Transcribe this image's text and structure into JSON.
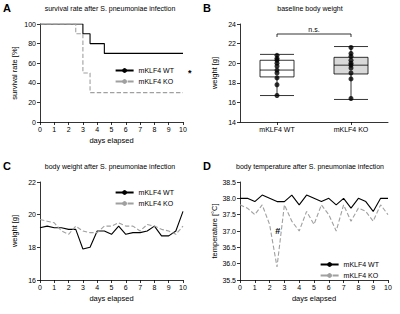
{
  "chart_data": [
    {
      "panel": "A",
      "type": "step",
      "title": "survival rate after S. pneumoniae infection",
      "x_label": "days elapsed",
      "y_label": "survival rate [%]",
      "xlim": [
        0,
        10
      ],
      "xticks": [
        0,
        1,
        2,
        3,
        4,
        5,
        6,
        7,
        8,
        9,
        10
      ],
      "ylim": [
        0,
        100
      ],
      "yticks": [
        0,
        20,
        40,
        60,
        80,
        100
      ],
      "grid": false,
      "legend": "right",
      "annotations": [
        "*"
      ],
      "series": [
        {
          "name": "mKLF4 WT",
          "color": "#000000",
          "line_style": "solid",
          "x": [
            0,
            3,
            3.5,
            4.5,
            10
          ],
          "values": [
            100,
            90,
            80,
            70,
            70
          ]
        },
        {
          "name": "mKLF4 KO",
          "color": "#a0a0a0",
          "line_style": "dashed",
          "x": [
            0,
            2.5,
            3,
            3.5,
            10
          ],
          "values": [
            100,
            90,
            50,
            30,
            30
          ]
        }
      ]
    },
    {
      "panel": "B",
      "type": "boxplot",
      "title": "baseline body weight",
      "y_label": "weight [g]",
      "categories": [
        "mKLF4 WT",
        "mKLF4 KO"
      ],
      "ylim": [
        14,
        24
      ],
      "yticks": [
        14,
        16,
        18,
        20,
        22,
        24
      ],
      "grid": false,
      "colors": [
        "#ffffff",
        "#d9d9d9"
      ],
      "marker": "circle",
      "annotations": [
        "n.s."
      ],
      "boxes": [
        [
          16.7,
          18.6,
          19.3,
          20.3,
          20.9
        ],
        [
          16.3,
          18.9,
          19.8,
          20.6,
          21.7
        ]
      ],
      "points": [
        [
          20.8,
          20.5,
          20.3,
          20.0,
          19.7,
          19.3,
          19.0,
          18.5,
          17.8,
          16.7
        ],
        [
          21.6,
          21.0,
          20.7,
          20.3,
          20.0,
          19.8,
          19.5,
          19.0,
          18.4,
          16.4
        ]
      ]
    },
    {
      "panel": "C",
      "type": "line",
      "title": "body weight after S. pneumoniae infection",
      "x_label": "days elapsed",
      "y_label": "weight [g]",
      "xlim": [
        0,
        10
      ],
      "xticks": [
        0,
        1,
        2,
        3,
        4,
        5,
        6,
        7,
        8,
        9,
        10
      ],
      "ylim": [
        16,
        22
      ],
      "yticks": [
        16,
        18,
        20,
        22
      ],
      "grid": false,
      "legend": "upper right",
      "x": [
        0,
        0.5,
        1,
        1.5,
        2,
        2.5,
        3,
        3.5,
        4,
        4.5,
        5,
        5.5,
        6,
        6.5,
        7,
        7.5,
        8,
        8.5,
        9,
        9.5,
        10
      ],
      "series": [
        {
          "name": "mKLF4 WT",
          "color": "#000000",
          "line_style": "solid",
          "values": [
            19.2,
            19.3,
            19.2,
            19.2,
            19.1,
            19.1,
            17.9,
            18.0,
            19.0,
            19.0,
            18.8,
            19.3,
            18.8,
            18.9,
            18.9,
            19.0,
            19.3,
            18.7,
            18.7,
            19.0,
            20.2
          ]
        },
        {
          "name": "mKLF4 KO",
          "color": "#a0a0a0",
          "line_style": "dashed",
          "values": [
            19.7,
            19.6,
            19.5,
            19.0,
            18.8,
            19.3,
            19.0,
            18.9,
            18.9,
            19.3,
            19.3,
            19.5,
            19.3,
            19.3,
            19.0,
            19.4,
            19.3,
            19.1,
            19.0,
            18.8,
            19.3
          ]
        }
      ]
    },
    {
      "panel": "D",
      "type": "line",
      "title": "body temperature after S. pneumoniae infection",
      "x_label": "days elapsed",
      "y_label": "temperature [°C]",
      "xlim": [
        0,
        10
      ],
      "xticks": [
        0,
        1,
        2,
        3,
        4,
        5,
        6,
        7,
        8,
        9,
        10
      ],
      "ylim": [
        35.5,
        38.5
      ],
      "yticks": [
        35.5,
        {
          "value": 36,
          "label": "36.0"
        },
        36.5,
        {
          "value": 37,
          "label": "37.0"
        },
        37.5,
        {
          "value": 38,
          "label": "38.0"
        },
        38.5
      ],
      "grid": false,
      "legend": "lower right",
      "annotations": [
        "#"
      ],
      "x": [
        0,
        0.5,
        1,
        1.5,
        2,
        2.5,
        3,
        3.5,
        4,
        4.5,
        5,
        5.5,
        6,
        6.5,
        7,
        7.5,
        8,
        8.5,
        9,
        9.5,
        10
      ],
      "series": [
        {
          "name": "mKLF4 WT",
          "color": "#000000",
          "line_style": "solid",
          "values": [
            38.0,
            38.0,
            37.9,
            38.1,
            38.0,
            37.9,
            37.9,
            38.1,
            37.8,
            38.1,
            38.0,
            37.9,
            38.0,
            37.8,
            38.0,
            37.7,
            38.0,
            37.9,
            37.6,
            38.0,
            38.0
          ]
        },
        {
          "name": "mKLF4 KO",
          "color": "#a0a0a0",
          "line_style": "dashed",
          "values": [
            37.8,
            37.7,
            37.5,
            37.8,
            37.2,
            35.9,
            37.8,
            37.3,
            37.0,
            37.6,
            37.2,
            37.8,
            37.5,
            37.0,
            37.8,
            37.3,
            37.7,
            37.6,
            37.3,
            37.8,
            37.5
          ]
        }
      ]
    }
  ]
}
